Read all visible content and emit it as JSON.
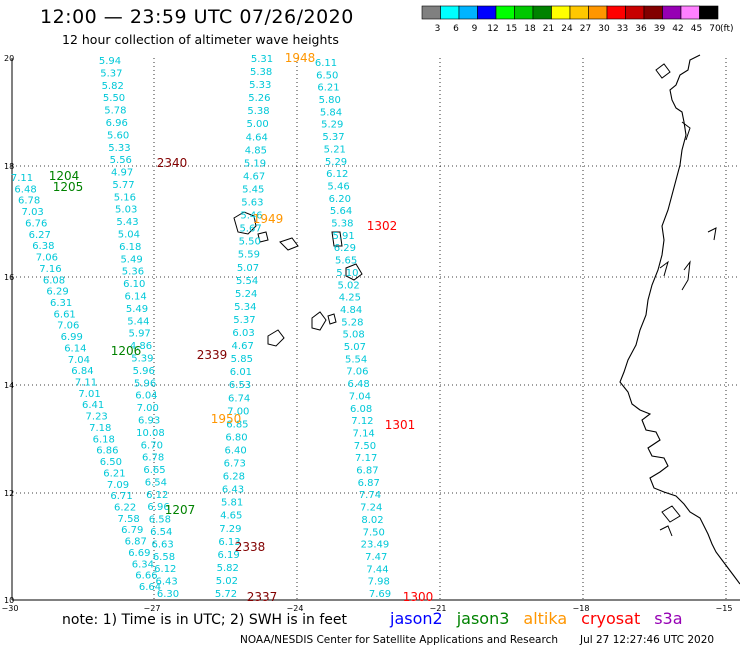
{
  "header": {
    "title": "12:00 — 23:59 UTC 07/26/2020",
    "subtitle": "12 hour collection of altimeter wave heights"
  },
  "legend": {
    "unit": "(ft)",
    "bins": [
      {
        "label": "3",
        "color": "#808080"
      },
      {
        "label": "6",
        "color": "#00ffff"
      },
      {
        "label": "9",
        "color": "#00b4ff"
      },
      {
        "label": "12",
        "color": "#0000ff"
      },
      {
        "label": "15",
        "color": "#00ff00"
      },
      {
        "label": "18",
        "color": "#00c800"
      },
      {
        "label": "21",
        "color": "#008200"
      },
      {
        "label": "24",
        "color": "#ffff00"
      },
      {
        "label": "27",
        "color": "#ffc800"
      },
      {
        "label": "30",
        "color": "#ff9600"
      },
      {
        "label": "33",
        "color": "#ff0000"
      },
      {
        "label": "36",
        "color": "#c80000"
      },
      {
        "label": "39",
        "color": "#820000"
      },
      {
        "label": "42",
        "color": "#9600b4"
      },
      {
        "label": "45",
        "color": "#ff80ff"
      },
      {
        "label": "70",
        "color": "#000000"
      }
    ]
  },
  "axes": {
    "lat_labels": [
      "20",
      "18",
      "16",
      "14",
      "12",
      "10"
    ],
    "lon_labels": [
      "−30",
      "−27",
      "−24",
      "−21",
      "−18",
      "−15"
    ]
  },
  "tracks": [
    {
      "color": "#00c8d8",
      "values": [
        "5.94",
        "5.37",
        "5.82",
        "5.50",
        "5.78",
        "6.96",
        "5.60",
        "5.33",
        "5.56",
        "4.97",
        "5.77",
        "5.16",
        "5.03",
        "5.43",
        "5.04",
        "6.18",
        "5.49",
        "5.36",
        "6.10",
        "6.14",
        "5.49",
        "5.44",
        "5.97",
        "4.86",
        "5.39",
        "5.96",
        "5.96",
        "6.04",
        "7.00",
        "6.93",
        "10.08",
        "6.70",
        "6.78",
        "6.65",
        "6.54",
        "6.12",
        "6.96",
        "6.58",
        "6.54",
        "6.63",
        "6.58",
        "6.12",
        "6.43",
        "6.30"
      ]
    },
    {
      "color": "#00c8d8",
      "values": [
        "7.11",
        "6.48",
        "6.78",
        "7.03",
        "6.76",
        "6.27",
        "6.38",
        "7.06",
        "7.16",
        "6.08",
        "6.29",
        "6.31",
        "6.61",
        "7.06",
        "6.99",
        "6.14",
        "7.04",
        "6.84",
        "7.11",
        "7.01",
        "6.41",
        "7.23",
        "7.18",
        "6.18",
        "6.86",
        "6.50",
        "6.21",
        "7.09",
        "6.71",
        "6.22",
        "7.58",
        "6.79",
        "6.87",
        "6.69",
        "6.34",
        "6.66",
        "6.64"
      ]
    },
    {
      "color": "#00c8d8",
      "values": [
        "5.31",
        "5.38",
        "5.33",
        "5.26",
        "5.38",
        "5.00",
        "4.64",
        "4.85",
        "5.19",
        "4.67",
        "5.45",
        "5.63",
        "5.46",
        "5.67",
        "5.50",
        "5.59",
        "5.07",
        "5.54",
        "5.24",
        "5.34",
        "5.37",
        "6.03",
        "4.67",
        "5.85",
        "6.01",
        "6.53",
        "6.74",
        "7.00",
        "6.85",
        "6.80",
        "6.40",
        "6.73",
        "6.28",
        "6.43",
        "5.81",
        "4.65",
        "7.29",
        "6.13",
        "6.19",
        "5.82",
        "5.02",
        "5.72"
      ]
    },
    {
      "color": "#00c8d8",
      "values": [
        "6.11",
        "6.50",
        "6.21",
        "5.80",
        "5.84",
        "5.29",
        "5.37",
        "5.21",
        "5.29",
        "6.12",
        "5.46",
        "6.20",
        "5.64",
        "5.38",
        "5.91",
        "6.29",
        "5.65",
        "5.10",
        "5.02",
        "4.25",
        "4.84",
        "5.28",
        "5.08",
        "5.07",
        "5.54",
        "7.06",
        "6.48",
        "7.04",
        "6.08",
        "7.12",
        "7.14",
        "7.50",
        "7.17",
        "6.87",
        "6.87",
        "7.74",
        "7.24",
        "8.02",
        "7.50",
        "23.49",
        "7.47",
        "7.44",
        "7.98",
        "7.69"
      ]
    }
  ],
  "time_labels": [
    {
      "text": "1948",
      "color": "#ff9600"
    },
    {
      "text": "6.11",
      "color": "#00c8d8"
    },
    {
      "text": "2340",
      "color": "#820000"
    },
    {
      "text": "1204",
      "color": "#008200"
    },
    {
      "text": "1205",
      "color": "#008200"
    },
    {
      "text": "1949",
      "color": "#ff9600"
    },
    {
      "text": "1302",
      "color": "#ff0000"
    },
    {
      "text": "1206",
      "color": "#008200"
    },
    {
      "text": "2339",
      "color": "#820000"
    },
    {
      "text": "1950",
      "color": "#ff9600"
    },
    {
      "text": "1301",
      "color": "#ff0000"
    },
    {
      "text": "1207",
      "color": "#008200"
    },
    {
      "text": "2338",
      "color": "#820000"
    },
    {
      "text": "2337",
      "color": "#820000"
    },
    {
      "text": "1300",
      "color": "#ff0000"
    }
  ],
  "footer": {
    "note": "note:  1) Time is in UTC;  2) SWH is in feet",
    "credit": "NOAA/NESDIS Center for Satellite Applications and Research",
    "timestamp": "Jul 27 12:27:46 UTC 2020",
    "missions": [
      {
        "name": "jason2",
        "color": "#0000ff"
      },
      {
        "name": "jason3",
        "color": "#008200"
      },
      {
        "name": "altika",
        "color": "#ff9600"
      },
      {
        "name": "cryosat",
        "color": "#ff0000"
      },
      {
        "name": "s3a",
        "color": "#9600b4"
      }
    ]
  }
}
